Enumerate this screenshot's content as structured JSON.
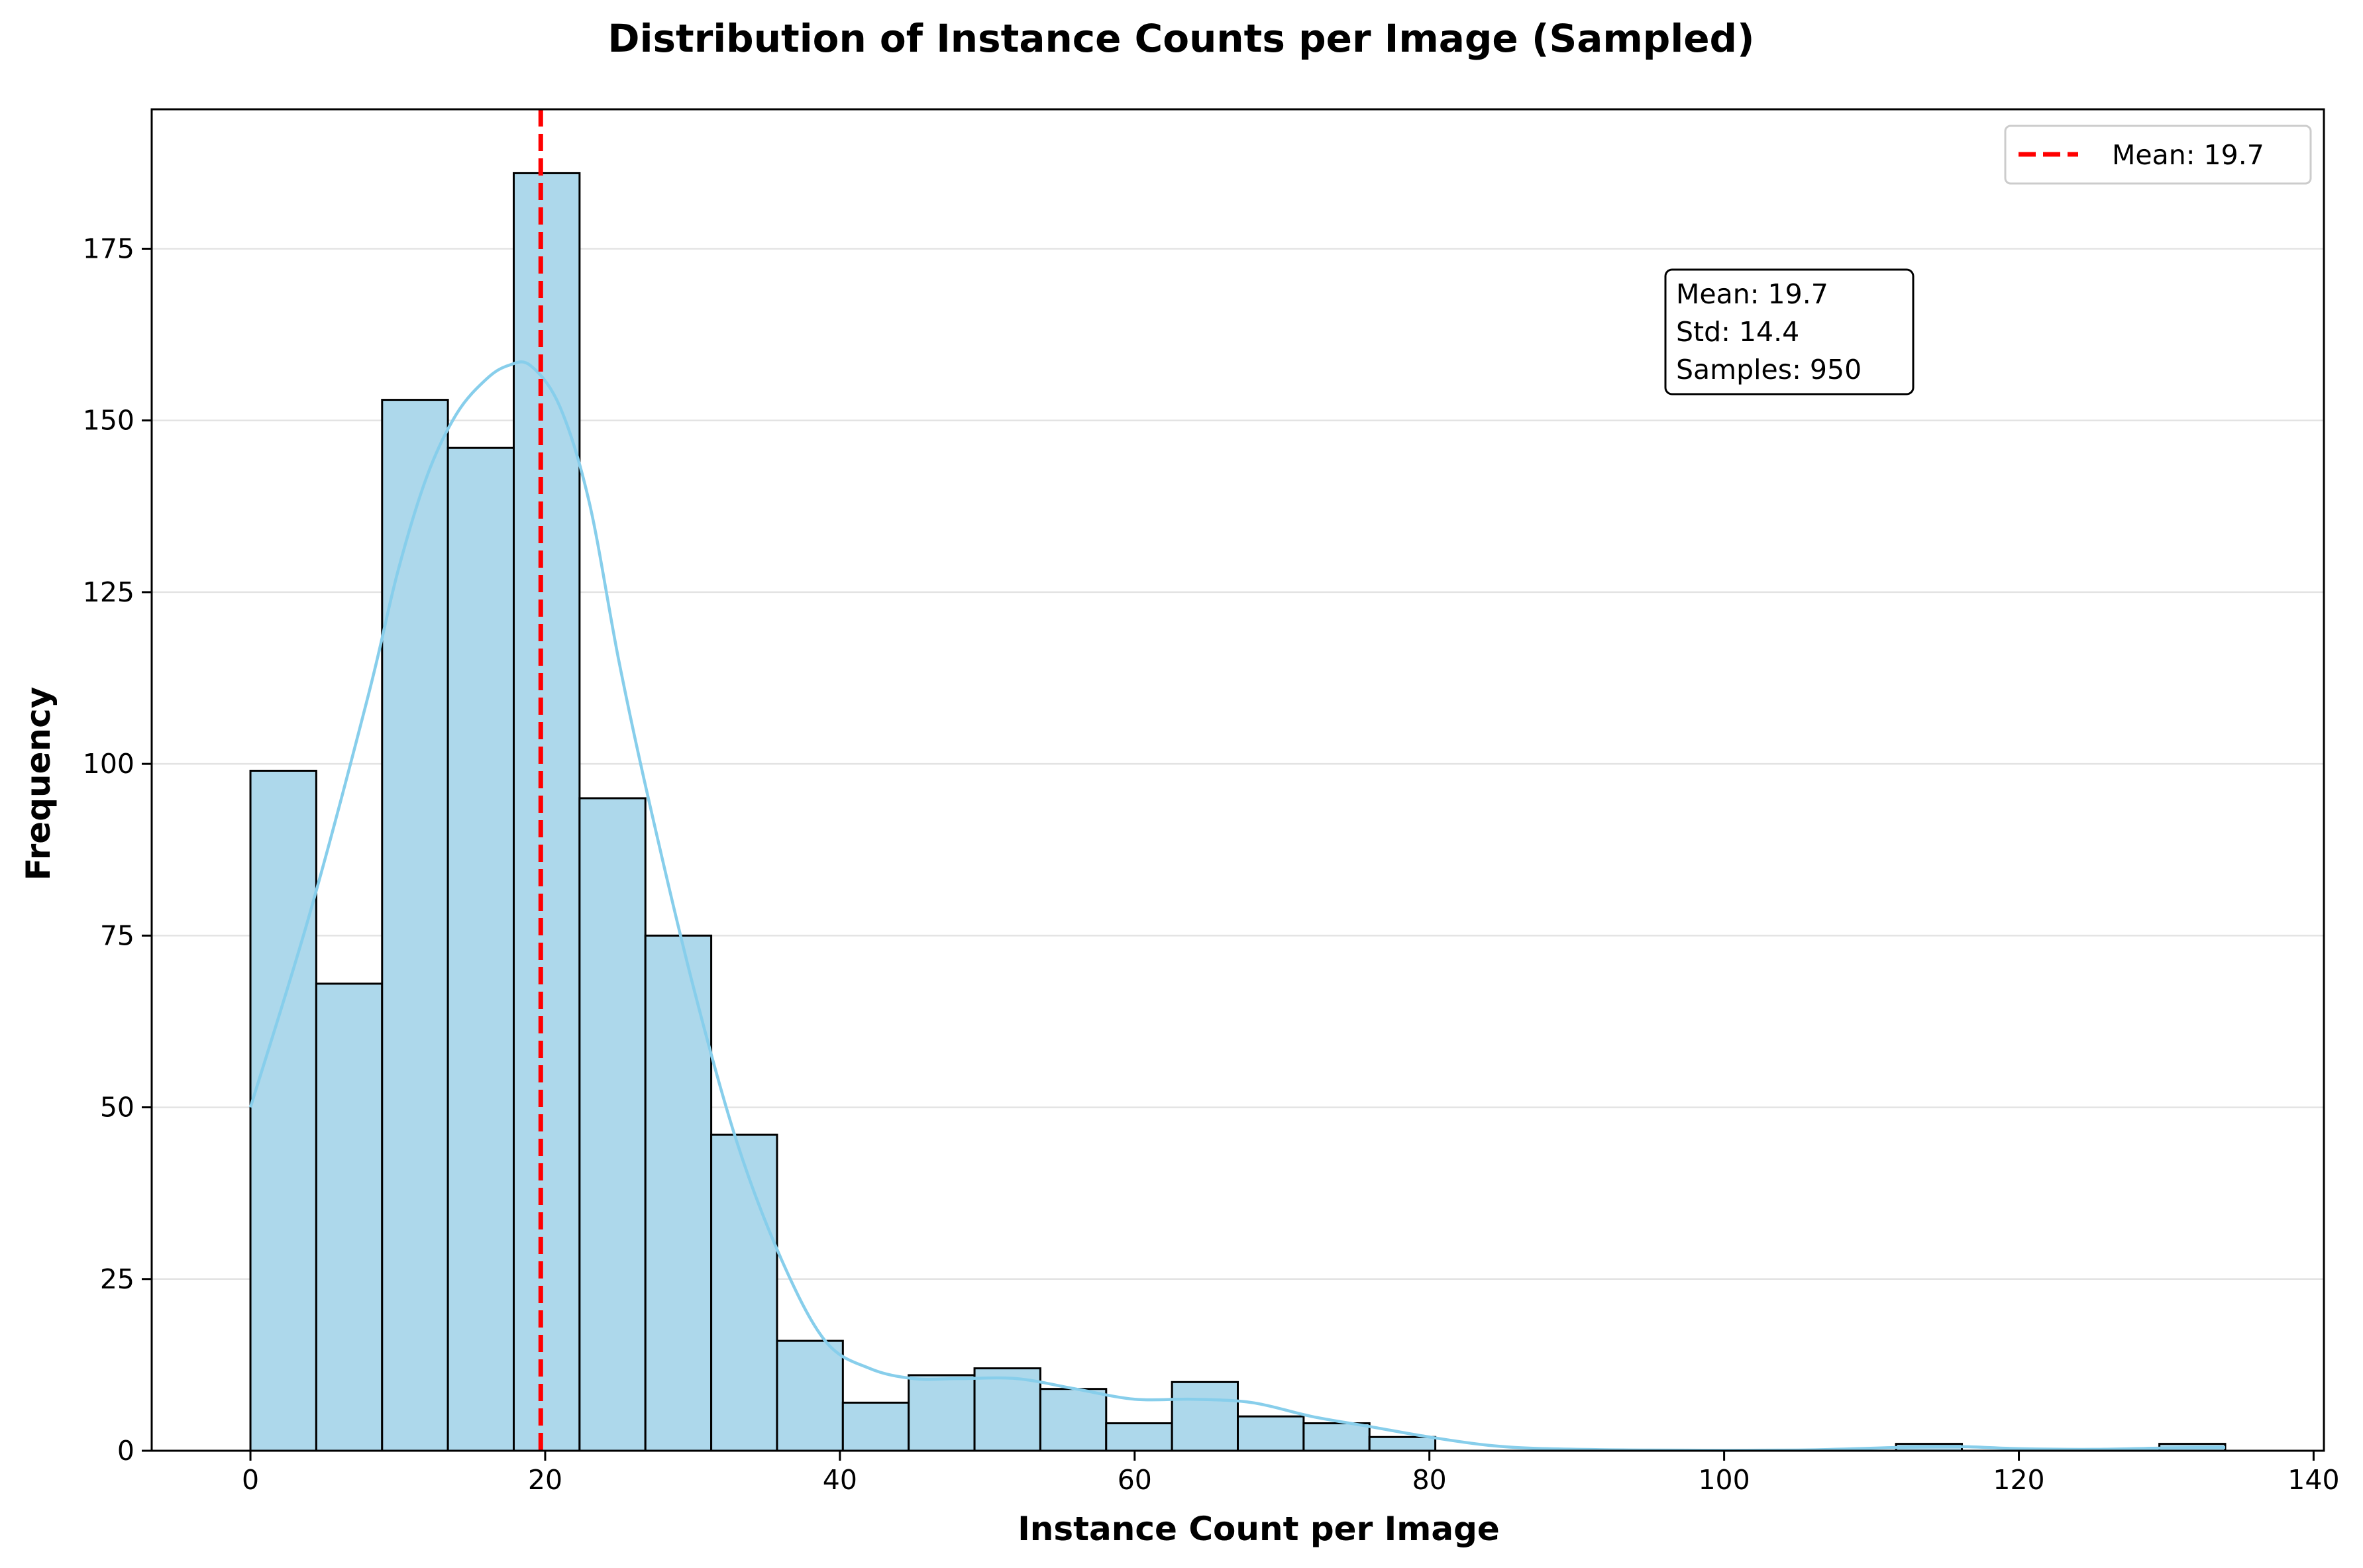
{
  "chart_data": {
    "type": "bar",
    "title": "Distribution of Instance Counts per Image (Sampled)",
    "xlabel": "Instance Count per Image",
    "ylabel": "Frequency",
    "xlim": [
      -6.7,
      140.7
    ],
    "ylim": [
      0,
      195.3
    ],
    "xticks": [
      0,
      20,
      40,
      60,
      80,
      100,
      120,
      140
    ],
    "yticks": [
      0,
      25,
      50,
      75,
      100,
      125,
      150,
      175
    ],
    "grid": "horizontal",
    "bin_start": 0,
    "bin_width": 4.4667,
    "counts": [
      99,
      68,
      153,
      146,
      186,
      95,
      75,
      46,
      16,
      7,
      11,
      12,
      9,
      4,
      10,
      5,
      4,
      2,
      0,
      0,
      0,
      0,
      0,
      0,
      0,
      1,
      0,
      0,
      0,
      1
    ],
    "bar_fill": "#add8eb",
    "bar_edge": "#000000",
    "kde": {
      "color": "#87ceeb",
      "x": [
        0,
        4,
        8,
        10,
        12,
        14,
        16,
        17.5,
        19,
        21,
        23,
        25,
        27,
        30,
        33,
        36,
        39,
        42,
        45,
        48,
        52,
        56,
        60,
        64,
        68,
        72,
        76,
        80,
        84,
        88,
        95,
        105,
        112,
        116,
        120,
        125,
        130,
        134
      ],
      "y": [
        50,
        78,
        110,
        128,
        142,
        151,
        156,
        158,
        158,
        152,
        138,
        115,
        95,
        68,
        45,
        28,
        16,
        12,
        10.5,
        10.5,
        10.5,
        9,
        7.5,
        7.5,
        7,
        5,
        3.5,
        2,
        0.8,
        0.3,
        0.1,
        0.1,
        0.5,
        0.6,
        0.3,
        0.2,
        0.4,
        0.5
      ]
    },
    "mean_line": {
      "x": 19.7,
      "color": "#ff0000",
      "style": "dashed",
      "label": "Mean: 19.7"
    },
    "legend": {
      "placement": "top-right",
      "entries": [
        "Mean: 19.7"
      ]
    },
    "stats_box": {
      "lines": [
        "Mean: 19.7",
        "Std: 14.4",
        "Samples: 950"
      ]
    }
  }
}
